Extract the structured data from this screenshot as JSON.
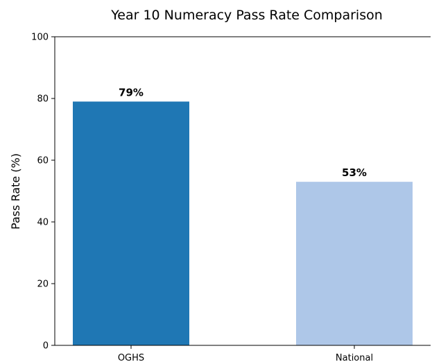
{
  "chart_data": {
    "type": "bar",
    "title": "Year 10 Numeracy Pass Rate Comparison",
    "xlabel": "",
    "ylabel": "Pass Rate (%)",
    "categories": [
      "OGHS",
      "National"
    ],
    "values": [
      79,
      53
    ],
    "data_labels": [
      "79%",
      "53%"
    ],
    "colors": [
      "#1f77b4",
      "#aec7e8"
    ],
    "ylim": [
      0,
      100
    ],
    "yticks": [
      0,
      20,
      40,
      60,
      80,
      100
    ],
    "grid": false,
    "legend": "none"
  }
}
